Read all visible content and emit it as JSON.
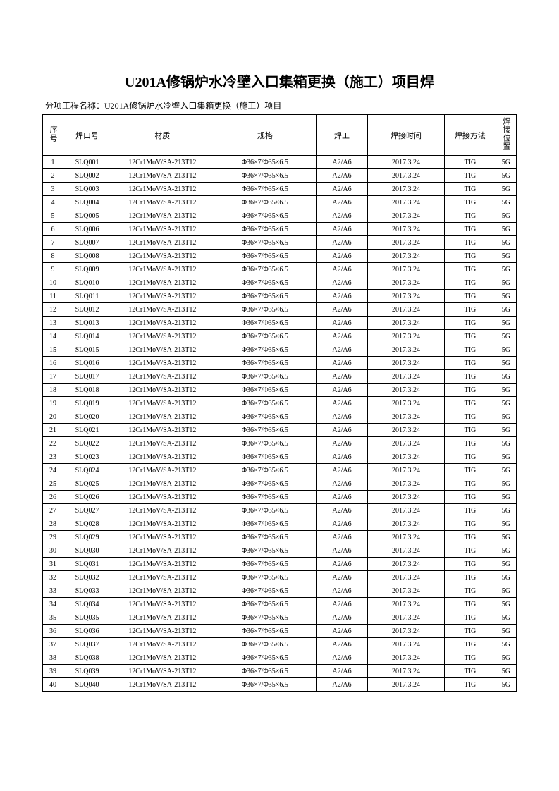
{
  "title": "U201A修锅炉水冷壁入口集箱更换（施工）项目焊",
  "subtitle": "分项工程名称：U201A修锅炉水冷壁入口集箱更换（施工）项目",
  "headers": {
    "seq": "序号",
    "weldNo": "焊口号",
    "material": "材质",
    "spec": "规格",
    "welder": "焊工",
    "time": "焊接时间",
    "method": "焊接方法",
    "position": "焊接位置"
  },
  "common": {
    "material": "12Cr1MoV/SA-213T12",
    "spec": "Φ36×7/Φ35×6.5",
    "welder": "A2/A6",
    "time": "2017.3.24",
    "method": "TIG",
    "position": "5G"
  },
  "rowCount": 40,
  "weldPrefix": "SLQ"
}
